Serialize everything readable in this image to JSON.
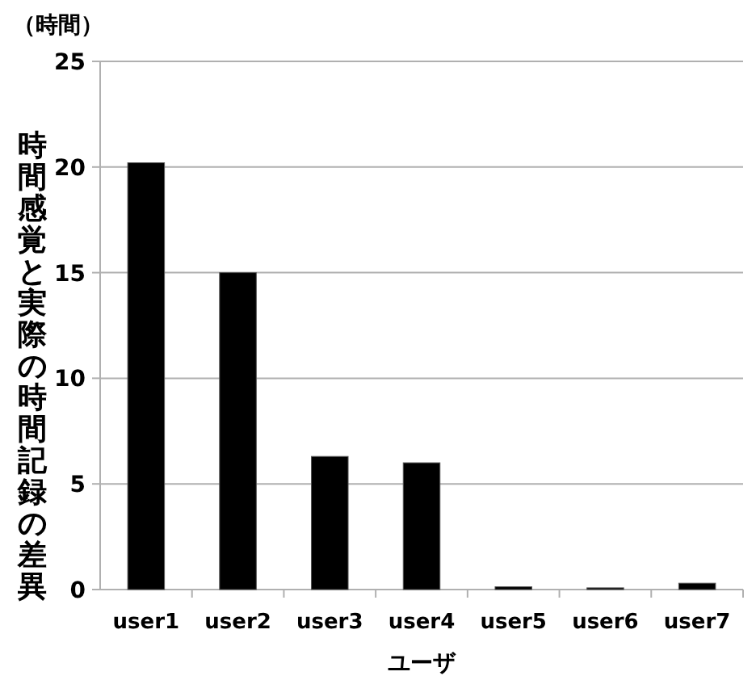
{
  "chart_data": {
    "type": "bar",
    "xlabel": "ユーザ",
    "ylabel": "時間感覚と実際の時間記録の差異",
    "annotations": [
      "（時間）"
    ],
    "categories": [
      "user1",
      "user2",
      "user3",
      "user4",
      "user5",
      "user6",
      "user7"
    ],
    "values": [
      20.2,
      15.0,
      6.3,
      6.0,
      0.13,
      0.08,
      0.3
    ],
    "color": "#000000",
    "ylim": [
      0,
      25
    ],
    "yticks": [
      0,
      5,
      10,
      15,
      20,
      25
    ],
    "grid": "y"
  }
}
